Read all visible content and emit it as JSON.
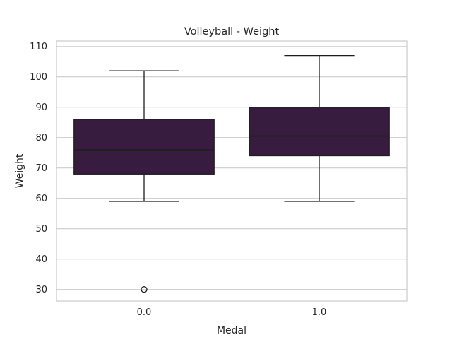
{
  "chart_data": {
    "type": "box",
    "title": "Volleyball - Weight",
    "xlabel": "Medal",
    "ylabel": "Weight",
    "categories": [
      "0.0",
      "1.0"
    ],
    "boxes": [
      {
        "category": "0.0",
        "whisker_low": 59,
        "q1": 68,
        "median": 76,
        "q3": 86,
        "whisker_high": 102,
        "outliers": [
          30
        ]
      },
      {
        "category": "1.0",
        "whisker_low": 59,
        "q1": 74,
        "median": 80.5,
        "q3": 90,
        "whisker_high": 107,
        "outliers": []
      }
    ],
    "ylim": [
      26.2,
      111.8
    ],
    "yticks": [
      30,
      40,
      50,
      60,
      70,
      80,
      90,
      100,
      110
    ],
    "grid": "horizontal",
    "legend": "none",
    "box_color": "#371c3f",
    "line_color": "#1e1e1e",
    "grid_color": "#cccccc",
    "frame_color": "#cccccc"
  }
}
